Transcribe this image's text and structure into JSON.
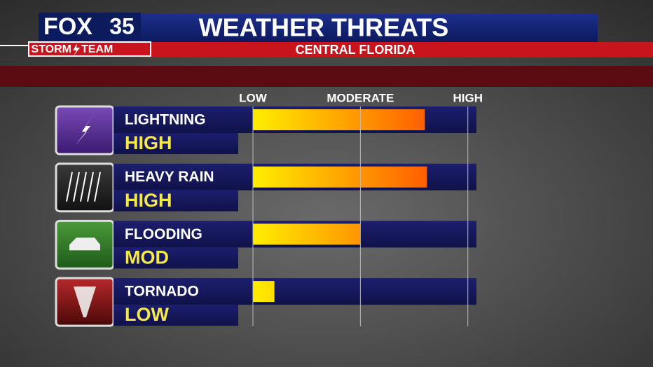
{
  "chart_data": {
    "type": "bar",
    "orientation": "horizontal",
    "brand": "FOX",
    "channel": "35",
    "team": [
      "STORM",
      "TEAM"
    ],
    "title": "WEATHER THREATS",
    "subtitle": "CENTRAL FLORIDA",
    "categories": [
      "LIGHTNING",
      "HEAVY RAIN",
      "FLOODING",
      "TORNADO"
    ],
    "values": [
      80,
      81,
      50,
      10
    ],
    "value_labels": [
      "HIGH",
      "HIGH",
      "MOD",
      "LOW"
    ],
    "colors": [
      "#ffee00",
      "#ff3c00"
    ],
    "xlim": [
      0,
      104
    ],
    "xticks": [
      {
        "value": 0,
        "label": "LOW"
      },
      {
        "value": 50,
        "label": "MODERATE"
      },
      {
        "value": 100,
        "label": "HIGH"
      }
    ],
    "grid": true
  }
}
